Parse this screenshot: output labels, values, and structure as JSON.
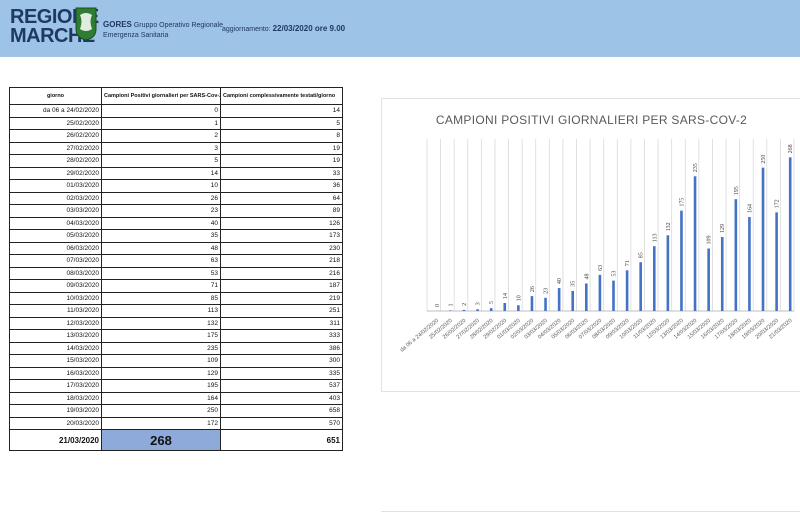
{
  "header": {
    "logo_line1": "REGIONE",
    "logo_line2": "MARCHE",
    "gores_title": "GORES",
    "gores_sub1": "Gruppo Operativo Regionale",
    "gores_sub2": "Emergenza Sanitaria",
    "update_label": "aggiornamento:",
    "update_value": "22/03/2020 ore 9.00",
    "bar_color": "#9dc3e6"
  },
  "table": {
    "headers": [
      "giorno",
      "Campioni Positivi giornalieri per SARS-Cov-2",
      "Campioni complessivamente testati/giorno"
    ],
    "rows": [
      [
        "da 06 a 24/02/2020",
        "0",
        "14"
      ],
      [
        "25/02/2020",
        "1",
        "5"
      ],
      [
        "26/02/2020",
        "2",
        "8"
      ],
      [
        "27/02/2020",
        "3",
        "19"
      ],
      [
        "28/02/2020",
        "5",
        "19"
      ],
      [
        "29/02/2020",
        "14",
        "33"
      ],
      [
        "01/03/2020",
        "10",
        "36"
      ],
      [
        "02/03/2020",
        "26",
        "64"
      ],
      [
        "03/03/2020",
        "23",
        "89"
      ],
      [
        "04/03/2020",
        "40",
        "126"
      ],
      [
        "05/03/2020",
        "35",
        "173"
      ],
      [
        "06/03/2020",
        "48",
        "230"
      ],
      [
        "07/03/2020",
        "63",
        "218"
      ],
      [
        "08/03/2020",
        "53",
        "216"
      ],
      [
        "09/03/2020",
        "71",
        "187"
      ],
      [
        "10/03/2020",
        "85",
        "219"
      ],
      [
        "11/03/2020",
        "113",
        "251"
      ],
      [
        "12/03/2020",
        "132",
        "311"
      ],
      [
        "13/03/2020",
        "175",
        "333"
      ],
      [
        "14/03/2020",
        "235",
        "386"
      ],
      [
        "15/03/2020",
        "109",
        "300"
      ],
      [
        "16/03/2020",
        "129",
        "335"
      ],
      [
        "17/03/2020",
        "195",
        "537"
      ],
      [
        "18/03/2020",
        "164",
        "403"
      ],
      [
        "19/03/2020",
        "250",
        "658"
      ],
      [
        "20/03/2020",
        "172",
        "570"
      ]
    ],
    "last_row": [
      "21/03/2020",
      "268",
      "651"
    ],
    "highlight_color": "#8eaadb"
  },
  "chart_data": {
    "type": "bar",
    "title": "CAMPIONI POSITIVI GIORNALIERI PER SARS-COV-2",
    "categories": [
      "da 06 a 24/02/2020",
      "25/02/2020",
      "26/02/2020",
      "27/02/2020",
      "28/02/2020",
      "29/02/2020",
      "01/03/2020",
      "02/03/2020",
      "03/03/2020",
      "04/03/2020",
      "05/03/2020",
      "06/03/2020",
      "07/03/2020",
      "08/03/2020",
      "09/03/2020",
      "10/03/2020",
      "11/03/2020",
      "12/03/2020",
      "13/03/2020",
      "14/03/2020",
      "15/03/2020",
      "16/03/2020",
      "17/03/2020",
      "18/03/2020",
      "19/03/2020",
      "20/03/2020",
      "21/03/2020"
    ],
    "values": [
      0,
      1,
      2,
      3,
      5,
      14,
      10,
      26,
      23,
      40,
      35,
      48,
      63,
      53,
      71,
      85,
      113,
      132,
      175,
      235,
      109,
      129,
      195,
      164,
      250,
      172,
      268
    ],
    "ylim": [
      0,
      300
    ],
    "grid": true,
    "bar_color": "#4472c4",
    "grid_color": "#d9d9d9"
  }
}
